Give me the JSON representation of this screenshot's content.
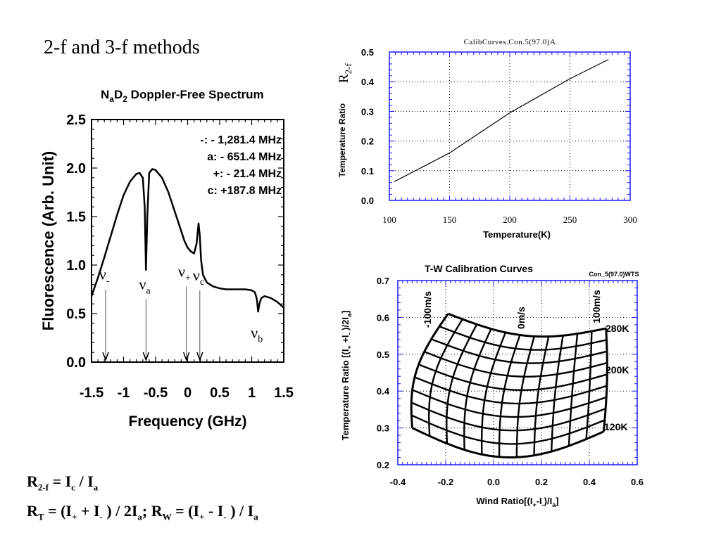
{
  "slide": {
    "title": "2-f and 3-f methods",
    "formula1": {
      "R": "R",
      "R_sub": "2-f",
      "eq": " = I",
      "c_sub": "c",
      "mid": " / I",
      "a_sub": "a"
    },
    "formula2": {
      "RT": "R",
      "RT_sub": "T",
      "p1": " = (I",
      "plus": "+",
      "p2": " + I",
      "minus": "-",
      "p3": " ) / 2I",
      "a": "a",
      "p4": "; R",
      "RW_sub": "W",
      "p5": " = (I",
      "plus2": "+",
      "p6": " - I",
      "minus2": "-",
      "p7": " ) / I",
      "a2": "a"
    }
  },
  "chart_data": [
    {
      "type": "line",
      "title": "NaD2 Doppler-Free Spectrum",
      "title_parts": {
        "n": "N",
        "a": "a",
        "d": "D",
        "two": "2",
        "rest": " Doppler-Free Spectrum"
      },
      "xlabel": "Frequency (GHz)",
      "ylabel": "Fluorescence (Arb. Unit)",
      "xlim": [
        -1.5,
        1.5
      ],
      "ylim": [
        0.0,
        2.5
      ],
      "x_ticks": [
        "-1.5",
        "-1",
        "-0.5",
        "0",
        "0.5",
        "1",
        "1.5"
      ],
      "y_ticks": [
        "0.0",
        "0.5",
        "1.0",
        "1.5",
        "2.0",
        "2.5"
      ],
      "annotations": [
        "-: - 1,281.4 MHz",
        "a: - 651.4 MHz",
        "+: - 21.4 MHz",
        "c: +187.8 MHz"
      ],
      "markers": [
        {
          "label": "ν",
          "sub": "-",
          "x": -1.28
        },
        {
          "label": "ν",
          "sub": "a",
          "x": -0.65
        },
        {
          "label": "ν",
          "sub": "+",
          "x": -0.02
        },
        {
          "label": "ν",
          "sub": "c",
          "x": 0.19
        },
        {
          "label": "ν",
          "sub": "b",
          "x": 1.1
        }
      ],
      "series": [
        {
          "x": [
            -1.5,
            -1.4,
            -1.3,
            -1.2,
            -1.1,
            -1.0,
            -0.9,
            -0.8,
            -0.75,
            -0.7,
            -0.67,
            -0.65,
            -0.63,
            -0.6,
            -0.55,
            -0.5,
            -0.4,
            -0.3,
            -0.2,
            -0.1,
            -0.05,
            0.0,
            0.05,
            0.1,
            0.14,
            0.17,
            0.19,
            0.21,
            0.24,
            0.3,
            0.4,
            0.5,
            0.6,
            0.7,
            0.8,
            0.9,
            1.0,
            1.05,
            1.08,
            1.1,
            1.12,
            1.15,
            1.2,
            1.3,
            1.4,
            1.5
          ],
          "y": [
            0.68,
            0.87,
            1.08,
            1.3,
            1.52,
            1.72,
            1.86,
            1.94,
            1.95,
            1.9,
            1.6,
            0.95,
            1.5,
            1.95,
            1.99,
            1.98,
            1.9,
            1.75,
            1.55,
            1.35,
            1.25,
            1.18,
            1.14,
            1.12,
            1.22,
            1.43,
            1.3,
            1.05,
            0.9,
            0.82,
            0.78,
            0.76,
            0.75,
            0.75,
            0.75,
            0.75,
            0.74,
            0.72,
            0.65,
            0.52,
            0.6,
            0.66,
            0.68,
            0.66,
            0.62,
            0.56
          ]
        }
      ]
    },
    {
      "type": "line",
      "title": "CalibCurves.Con.5(97.0)A",
      "xlabel": "Temperature(K)",
      "ylabel": "Temperature Ratio",
      "side_label": {
        "R": "R",
        "sub": "2-f"
      },
      "xlim": [
        100,
        300
      ],
      "ylim": [
        0.0,
        0.5
      ],
      "x_ticks": [
        "100",
        "150",
        "200",
        "250",
        "300"
      ],
      "y_ticks": [
        "0.0",
        "0.1",
        "0.2",
        "0.3",
        "0.4",
        "0.5"
      ],
      "series": [
        {
          "x": [
            104,
            150,
            200,
            250,
            282
          ],
          "y": [
            0.063,
            0.16,
            0.295,
            0.41,
            0.475
          ]
        }
      ]
    },
    {
      "type": "grid",
      "title": "T-W Calibration Curves",
      "subtitle": "Con_5(97.0)WTS",
      "xlabel": "Wind Ratio[(I+-I-)/Ia]",
      "xlabel_parts": {
        "a": "Wind Ratio[(I",
        "b": "+",
        "c": "-I",
        "d": "-",
        "e": ")/I",
        "f": "a",
        "g": "]"
      },
      "ylabel": "Temperature Ratio [(I+ +I-)/2Ia]",
      "ylabel_parts": {
        "a": "Temperature Ratio [(I",
        "b": "+",
        "c": " +I",
        "d": "-",
        "e": " )/2I",
        "f": "a",
        "g": "]"
      },
      "xlim": [
        -0.4,
        0.6
      ],
      "ylim": [
        0.2,
        0.7
      ],
      "x_ticks": [
        "-0.4",
        "-0.2",
        "0.0",
        "0.2",
        "0.4",
        "0.6"
      ],
      "y_ticks": [
        "0.2",
        "0.3",
        "0.4",
        "0.5",
        "0.6",
        "0.7"
      ],
      "wind_labels": [
        "-100m/s",
        "0m/s",
        "100m/s"
      ],
      "temp_labels": [
        "280K",
        "200K",
        "120K"
      ],
      "corners": {
        "top_left": [
          -0.19,
          0.61
        ],
        "top_right": [
          0.47,
          0.57
        ],
        "bottom_left": [
          -0.34,
          0.3
        ],
        "bottom_right": [
          0.46,
          0.29
        ],
        "top_mid_y": 0.55,
        "bottom_mid_y": 0.22,
        "left_bulge_x": -0.36,
        "right_bulge_x": 0.48
      },
      "rows": 9,
      "cols": 11
    }
  ]
}
